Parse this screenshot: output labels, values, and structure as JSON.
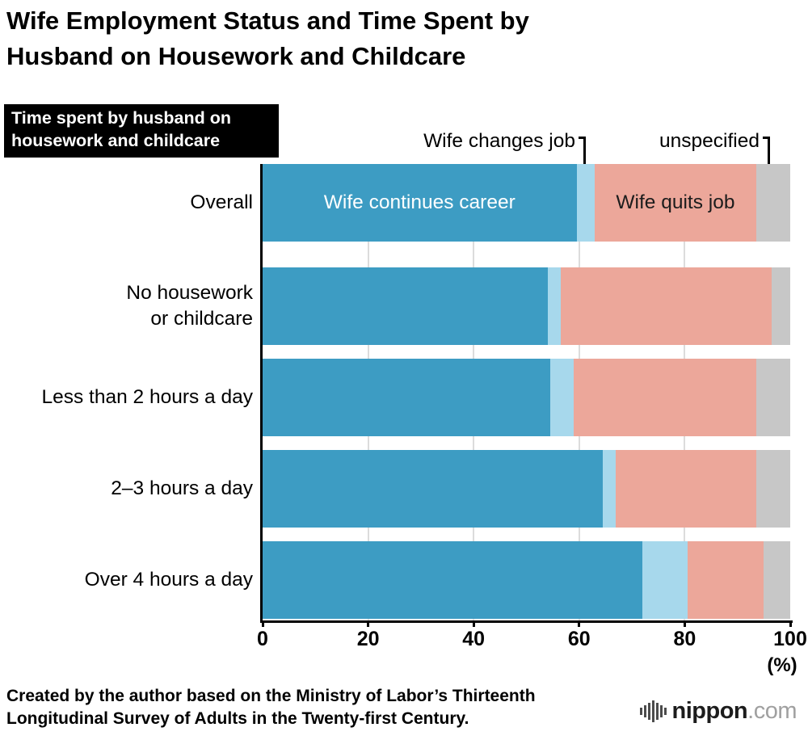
{
  "title": "Wife Employment Status and Time Spent by\nHusband on Housework and Childcare",
  "label_box": "Time spent by husband on\nhousework and childcare",
  "footer": "Created by the author based on the Ministry of Labor’s Thirteenth\nLongitudinal Survey of Adults in the Twenty-first Century.",
  "logo": {
    "name": "nippon",
    "tld": ".com"
  },
  "chart_data": {
    "type": "bar",
    "orientation": "horizontal",
    "stacked": true,
    "title": "Wife Employment Status and Time Spent by Husband on Housework and Childcare",
    "categories": [
      "Overall",
      "No housework\nor childcare",
      "Less than 2 hours a day",
      "2–3 hours a day",
      "Over 4 hours a day"
    ],
    "series": [
      {
        "name": "Wife continues career",
        "color": "#3d9cc3",
        "values": [
          59.5,
          54.0,
          54.5,
          64.5,
          72.0
        ]
      },
      {
        "name": "Wife changes job",
        "color": "#a7d8ec",
        "values": [
          3.5,
          2.5,
          4.5,
          2.5,
          8.5
        ]
      },
      {
        "name": "Wife quits job",
        "color": "#eca79a",
        "values": [
          30.5,
          40.0,
          34.5,
          26.5,
          14.5
        ]
      },
      {
        "name": "unspecified",
        "color": "#c7c7c7",
        "values": [
          6.5,
          3.5,
          6.5,
          6.5,
          5.0
        ]
      }
    ],
    "xlim": [
      0,
      100
    ],
    "xticks": [
      0,
      20,
      40,
      60,
      80,
      100
    ],
    "x_unit": "(%)",
    "grid": "vertical",
    "legend_position": "in-chart-annotations",
    "inner_labels": [
      {
        "row": 0,
        "series": 0,
        "color": "#ffffff"
      },
      {
        "row": 0,
        "series": 2,
        "color": "#1c1c1c"
      }
    ]
  }
}
